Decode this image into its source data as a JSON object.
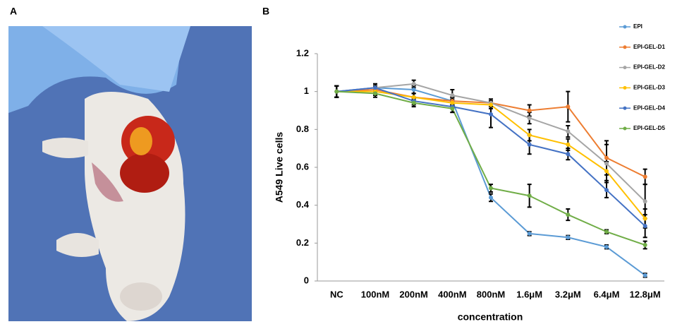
{
  "panel_labels": [
    "A",
    "B"
  ],
  "chart_data": {
    "type": "line",
    "xlabel": "concentration",
    "ylabel": "A549 Live cells",
    "categories": [
      "NC",
      "100nM",
      "200nM",
      "400nM",
      "800nM",
      "1.6μM",
      "3.2μM",
      "6.4μM",
      "12.8μM"
    ],
    "ylim": [
      0,
      1.2
    ],
    "yticks": [
      0,
      0.2,
      0.4,
      0.6,
      0.8,
      1,
      1.2
    ],
    "grid": false,
    "legend": "right",
    "series": [
      {
        "name": "EPI",
        "color": "#5b9bd5",
        "values": [
          1.0,
          1.02,
          1.01,
          0.95,
          0.44,
          0.25,
          0.23,
          0.18,
          0.03
        ],
        "errors": [
          0.03,
          0.02,
          0.02,
          0.02,
          0.02,
          0.01,
          0.01,
          0.01,
          0.01
        ]
      },
      {
        "name": "EPI-GEL-D1",
        "color": "#ed7d31",
        "values": [
          1.0,
          1.01,
          0.97,
          0.95,
          0.94,
          0.9,
          0.92,
          0.65,
          0.55
        ],
        "errors": [
          0.03,
          0.02,
          0.02,
          0.02,
          0.02,
          0.03,
          0.08,
          0.09,
          0.04
        ]
      },
      {
        "name": "EPI-GEL-D2",
        "color": "#a5a5a5",
        "values": [
          1.0,
          1.02,
          1.04,
          0.98,
          0.94,
          0.86,
          0.79,
          0.62,
          0.42
        ],
        "errors": [
          0.03,
          0.02,
          0.02,
          0.03,
          0.02,
          0.03,
          0.03,
          0.1,
          0.09
        ]
      },
      {
        "name": "EPI-GEL-D3",
        "color": "#ffc000",
        "values": [
          1.0,
          1.0,
          0.97,
          0.94,
          0.93,
          0.77,
          0.72,
          0.58,
          0.33
        ],
        "errors": [
          0.03,
          0.02,
          0.02,
          0.02,
          0.02,
          0.03,
          0.03,
          0.05,
          0.05
        ]
      },
      {
        "name": "EPI-GEL-D4",
        "color": "#4472c4",
        "values": [
          1.0,
          1.02,
          0.95,
          0.92,
          0.88,
          0.72,
          0.67,
          0.48,
          0.29
        ],
        "errors": [
          0.03,
          0.02,
          0.02,
          0.03,
          0.07,
          0.05,
          0.03,
          0.04,
          0.06
        ]
      },
      {
        "name": "EPI-GEL-D5",
        "color": "#70ad47",
        "values": [
          1.0,
          0.99,
          0.94,
          0.91,
          0.49,
          0.45,
          0.35,
          0.26,
          0.19
        ],
        "errors": [
          0.03,
          0.02,
          0.02,
          0.02,
          0.02,
          0.06,
          0.03,
          0.01,
          0.02
        ]
      }
    ]
  }
}
